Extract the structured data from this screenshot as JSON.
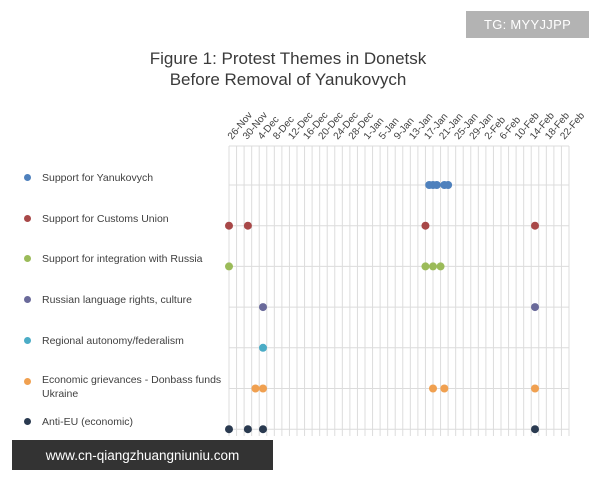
{
  "watermark": "TG: MYYJJPP",
  "url_banner": "www.cn-qiangzhuangniuniu.com",
  "chart_data": {
    "type": "scatter",
    "title_lines": [
      "Figure 1: Protest Themes in Donetsk",
      "Before Removal of Yanukovych"
    ],
    "x_ticks": [
      "26-Nov",
      "30-Nov",
      "4-Dec",
      "8-Dec",
      "12-Dec",
      "16-Dec",
      "20-Dec",
      "24-Dec",
      "28-Dec",
      "1-Jan",
      "5-Jan",
      "9-Jan",
      "13-Jan",
      "17-Jan",
      "21-Jan",
      "25-Jan",
      "29-Jan",
      "2-Feb",
      "6-Feb",
      "10-Feb",
      "14-Feb",
      "18-Feb",
      "22-Feb"
    ],
    "x_start": "2013-11-26",
    "x_end": "2014-02-24",
    "grid": true,
    "series": [
      {
        "name": "Support for Yanukovych",
        "color": "#4f81bd",
        "dates": [
          "2014-01-18",
          "2014-01-19",
          "2014-01-20",
          "2014-01-22",
          "2014-01-23"
        ]
      },
      {
        "name": "Support for Customs Union",
        "color": "#a84848",
        "dates": [
          "2013-11-26",
          "2013-12-01",
          "2014-01-17",
          "2014-02-15"
        ]
      },
      {
        "name": "Support for integration with Russia",
        "color": "#9bbb59",
        "dates": [
          "2013-11-26",
          "2014-01-17",
          "2014-01-19",
          "2014-01-21"
        ]
      },
      {
        "name": "Russian language rights, culture",
        "color": "#6a6a9a",
        "dates": [
          "2013-12-05",
          "2014-02-15"
        ]
      },
      {
        "name": "Regional autonomy/federalism",
        "color": "#4bacc6",
        "dates": [
          "2013-12-05"
        ]
      },
      {
        "name": "Economic grievances - Donbass funds Ukraine",
        "color": "#f0a050",
        "dates": [
          "2013-12-03",
          "2013-12-05",
          "2014-01-19",
          "2014-01-22",
          "2014-02-15"
        ]
      },
      {
        "name": "Anti-EU (economic)",
        "color": "#2a3a50",
        "dates": [
          "2013-11-26",
          "2013-12-01",
          "2013-12-05",
          "2014-02-15"
        ]
      }
    ]
  }
}
